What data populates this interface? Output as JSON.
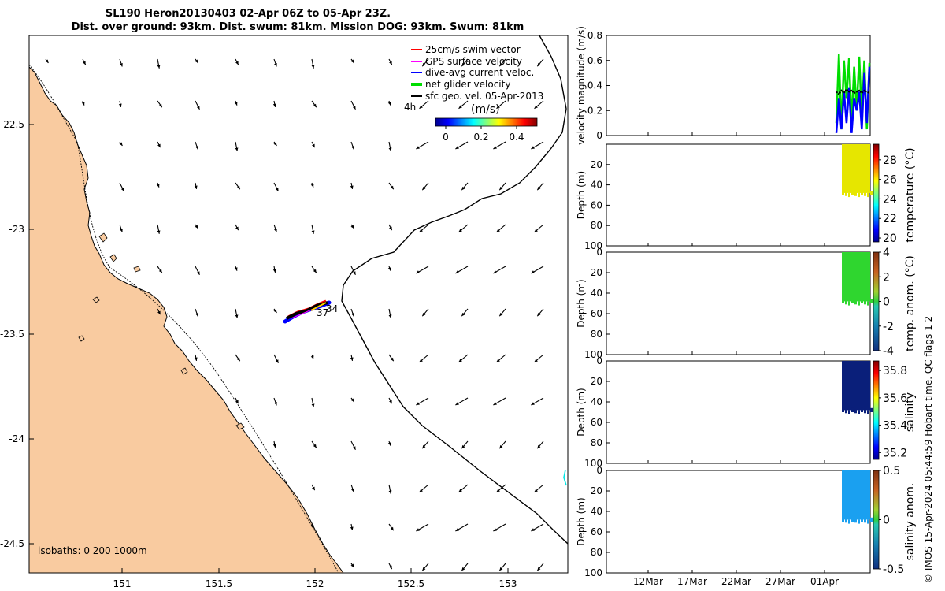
{
  "header": {
    "title_line1": "SL190 Heron20130403 02-Apr 06Z to 05-Apr 23Z.",
    "title_line2": "Dist. over ground: 93km. Dist. swum: 81km. Mission DOG: 93km. Swum: 81km"
  },
  "colors": {
    "land": "#f9cba0",
    "swim_vector": "#ff0000",
    "gps_velocity": "#ff00ff",
    "dive_avg_current": "#0000ff",
    "net_glider_velocity": "#00dd00",
    "sfc_geo_vel": "#000000"
  },
  "map": {
    "legend": [
      {
        "key": "swim",
        "label": "25cm/s swim vector",
        "color": "#ff0000"
      },
      {
        "key": "gps",
        "label": "GPS surface velocity",
        "color": "#ff00ff"
      },
      {
        "key": "dac",
        "label": "dive-avg current veloc.",
        "color": "#0000ff"
      },
      {
        "key": "net",
        "label": "net glider velocity",
        "color": "#00dd00"
      },
      {
        "key": "geo",
        "label": "sfc geo. vel. 05-Apr-2013",
        "color": "#000000"
      }
    ],
    "time_label": "4h",
    "colorbar_title": "(m/s)",
    "colorbar_ticks": [
      "0",
      "0.2",
      "0.4"
    ],
    "x_ticks": [
      "151",
      "151.5",
      "152",
      "152.5",
      "153"
    ],
    "y_ticks": [
      "-22.5",
      "-23",
      "-23.5",
      "-24",
      "-24.5"
    ],
    "track_labels": [
      "34",
      "37"
    ],
    "isobath_label": "isobaths: 0   200  1000m"
  },
  "chart_data": [
    {
      "type": "line",
      "ylabel": "velocity magnitude (m/s)",
      "ylim": [
        0,
        0.8
      ],
      "y_ticks": [
        "0",
        "0.2",
        "0.4",
        "0.6",
        "0.8"
      ],
      "series": [
        {
          "values": [
            0.1,
            0.65,
            0.05,
            0.6,
            0.3,
            0.62,
            0.1,
            0.55,
            0.2,
            0.63,
            0.15,
            0.6,
            0.05,
            0.58
          ]
        },
        {
          "values": [
            0.02,
            0.3,
            0.05,
            0.35,
            0.1,
            0.38,
            0.02,
            0.3,
            0.2,
            0.35,
            0.05,
            0.5,
            0.1,
            0.55
          ]
        },
        {
          "values": [
            0.35,
            0.33,
            0.36,
            0.34,
            0.37,
            0.35,
            0.36,
            0.34,
            0.35,
            0.36,
            0.34,
            0.36,
            0.35,
            0.34
          ]
        }
      ]
    },
    {
      "type": "heatmap",
      "ylabel": "Depth (m)",
      "y_ticks": [
        "20",
        "40",
        "60",
        "80",
        "100"
      ],
      "colorbar_label": "temperature (°C)",
      "colorbar_ticks": [
        "20",
        "22",
        "24",
        "26",
        "28"
      ]
    },
    {
      "type": "heatmap",
      "ylabel": "Depth (m)",
      "y_ticks": [
        "0",
        "20",
        "40",
        "60",
        "80",
        "100"
      ],
      "colorbar_label": "temp. anom. (°C)",
      "colorbar_ticks": [
        "-4",
        "-2",
        "0",
        "2",
        "4"
      ]
    },
    {
      "type": "heatmap",
      "ylabel": "Depth (m)",
      "y_ticks": [
        "0",
        "20",
        "40",
        "60",
        "80",
        "100"
      ],
      "colorbar_label": "salinity",
      "colorbar_ticks": [
        "35.2",
        "35.4",
        "35.6",
        "35.8"
      ]
    },
    {
      "type": "heatmap",
      "ylabel": "Depth (m)",
      "y_ticks": [
        "0",
        "20",
        "40",
        "60",
        "80",
        "100"
      ],
      "x_ticks": [
        "12Mar",
        "17Mar",
        "22Mar",
        "27Mar",
        "01Apr"
      ],
      "colorbar_label": "salinity anom.",
      "colorbar_ticks": [
        "-0.5",
        "0",
        "0.5"
      ]
    }
  ],
  "footer": {
    "credit": "© IMOS 15-Apr-2024 05:44:59 Hobart time. QC flags 1  2"
  }
}
